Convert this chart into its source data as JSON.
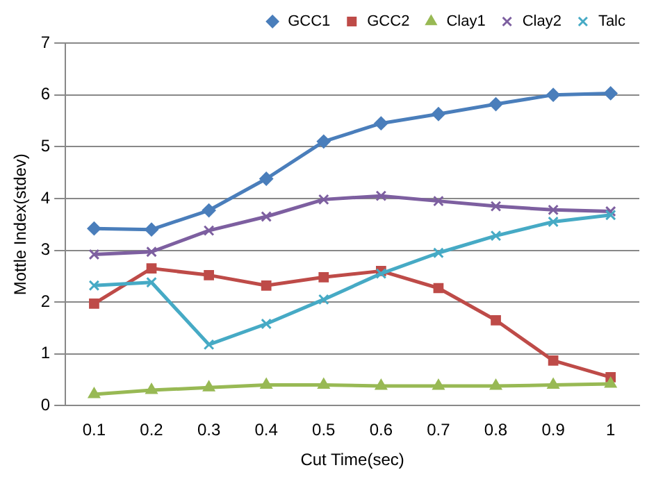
{
  "chart_data": {
    "type": "line",
    "xlabel": "Cut Time(sec)",
    "ylabel": "Mottle Index(stdev)",
    "categories": [
      "0.1",
      "0.2",
      "0.3",
      "0.4",
      "0.5",
      "0.6",
      "0.7",
      "0.8",
      "0.9",
      "1"
    ],
    "series": [
      {
        "name": "GCC1",
        "color": "#4a7ebb",
        "marker": "diamond",
        "values": [
          3.42,
          3.4,
          3.77,
          4.38,
          5.1,
          5.45,
          5.63,
          5.82,
          6.0,
          6.03
        ]
      },
      {
        "name": "GCC2",
        "color": "#be4b48",
        "marker": "square",
        "values": [
          1.97,
          2.65,
          2.52,
          2.32,
          2.48,
          2.6,
          2.27,
          1.65,
          0.87,
          0.55
        ]
      },
      {
        "name": "Clay1",
        "color": "#98b954",
        "marker": "triangle",
        "values": [
          0.22,
          0.3,
          0.35,
          0.4,
          0.4,
          0.38,
          0.38,
          0.38,
          0.4,
          0.42
        ]
      },
      {
        "name": "Clay2",
        "color": "#7d5fa0",
        "marker": "cross",
        "values": [
          2.92,
          2.97,
          3.38,
          3.65,
          3.98,
          4.05,
          3.95,
          3.85,
          3.78,
          3.75
        ]
      },
      {
        "name": "Talc",
        "color": "#46aac5",
        "marker": "cross",
        "values": [
          2.32,
          2.38,
          1.18,
          1.58,
          2.05,
          2.55,
          2.95,
          3.28,
          3.55,
          3.68
        ]
      }
    ],
    "ylim": [
      0,
      7
    ],
    "yticks": [
      0,
      1,
      2,
      3,
      4,
      5,
      6,
      7
    ],
    "grid": "y",
    "legend": "top"
  }
}
